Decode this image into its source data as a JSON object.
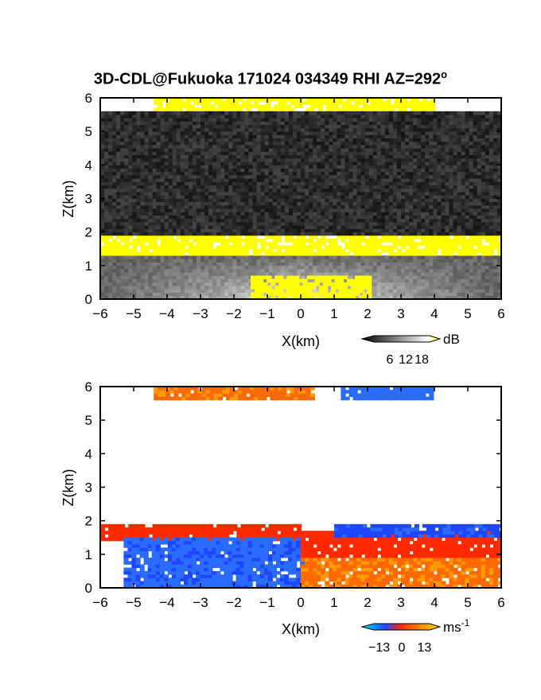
{
  "title_main": "3D-CDL@Fukuoka 171024 034349 RHI AZ=292",
  "title_sup": "o",
  "chart_data": [
    {
      "type": "heatmap",
      "panel": "reflectivity",
      "xlabel": "X(km)",
      "ylabel": "Z(km)",
      "xlim": [
        -6,
        6
      ],
      "ylim": [
        0,
        6
      ],
      "xticks": [
        "-6",
        "-5",
        "-4",
        "-3",
        "-2",
        "-1",
        "0",
        "1",
        "2",
        "3",
        "4",
        "5",
        "6"
      ],
      "yticks": [
        "0",
        "1",
        "2",
        "3",
        "4",
        "5",
        "6"
      ],
      "colorbar": {
        "unit": "dB",
        "ticks": [
          "6",
          "12",
          "18"
        ],
        "range": [
          0,
          21
        ]
      },
      "layers": [
        {
          "z_low_km": 0.0,
          "z_high_km": 1.3,
          "x_range_km": [
            -6,
            6
          ],
          "value_db": 10
        },
        {
          "z_low_km": 1.3,
          "z_high_km": 1.9,
          "x_range_km": [
            -6,
            6
          ],
          "value_db": 19
        },
        {
          "z_low_km": 0.0,
          "z_high_km": 0.7,
          "x_range_km": [
            -1.5,
            2.1
          ],
          "value_db": 19
        },
        {
          "z_low_km": 5.5,
          "z_high_km": 6.0,
          "x_range_km": [
            -4.4,
            3.9
          ],
          "value_db": 19
        },
        {
          "z_low_km": 1.9,
          "z_high_km": 5.5,
          "x_range_km": [
            -6,
            6
          ],
          "value_db": 3
        }
      ]
    },
    {
      "type": "heatmap",
      "panel": "doppler_velocity",
      "xlabel": "X(km)",
      "ylabel": "Z(km)",
      "xlim": [
        -6,
        6
      ],
      "ylim": [
        0,
        6
      ],
      "xticks": [
        "-6",
        "-5",
        "-4",
        "-3",
        "-2",
        "-1",
        "0",
        "1",
        "2",
        "3",
        "4",
        "5",
        "6"
      ],
      "yticks": [
        "0",
        "1",
        "2",
        "3",
        "4",
        "5",
        "6"
      ],
      "colorbar": {
        "unit": "ms",
        "unit_sup": "-1",
        "ticks": [
          "-13",
          "0",
          "13"
        ],
        "range": [
          -16,
          16
        ]
      },
      "layers": [
        {
          "z_low_km": 1.4,
          "z_high_km": 1.9,
          "x_range_km": [
            -6,
            0
          ],
          "value_ms": 3
        },
        {
          "z_low_km": 0.0,
          "z_high_km": 1.5,
          "x_range_km": [
            -5.3,
            0
          ],
          "value_ms": -10
        },
        {
          "z_low_km": 0.0,
          "z_high_km": 1.7,
          "x_range_km": [
            0,
            6
          ],
          "value_ms": 4
        },
        {
          "z_low_km": 1.5,
          "z_high_km": 1.9,
          "x_range_km": [
            1,
            6
          ],
          "value_ms": -12
        },
        {
          "z_low_km": 5.6,
          "z_high_km": 6.0,
          "x_range_km": [
            -4.4,
            0.3
          ],
          "value_ms": 8
        },
        {
          "z_low_km": 5.6,
          "z_high_km": 6.0,
          "x_range_km": [
            1.2,
            3.9
          ],
          "value_ms": -8
        }
      ]
    }
  ],
  "colors": {
    "reflectivity_high": "#ffff00",
    "velocity_blue": "#1e46ff",
    "velocity_red": "#ff2a00",
    "velocity_orange": "#ff8a00"
  }
}
